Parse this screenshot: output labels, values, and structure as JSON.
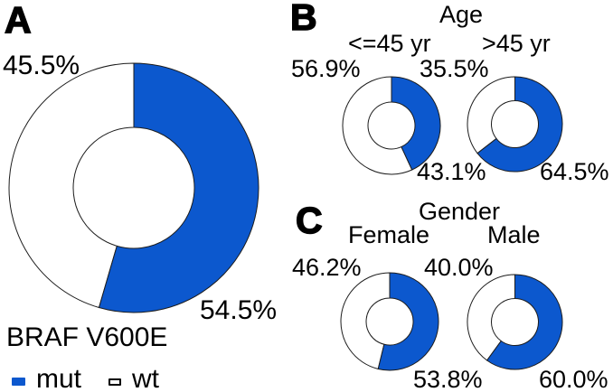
{
  "colors": {
    "mut_blue": "#0c58ce",
    "wt_white": "#ffffff",
    "outline": "#1c1c1c",
    "background": "#ffffff"
  },
  "panel_a": {
    "label": "A",
    "caption": "BRAF V600E",
    "legend": {
      "items": [
        {
          "label": "mut"
        },
        {
          "label": "wt"
        }
      ]
    }
  },
  "panel_b": {
    "label": "B",
    "title": "Age"
  },
  "panel_c": {
    "label": "C",
    "title": "Gender"
  },
  "chart_data": [
    {
      "type": "pie",
      "subtype": "donut",
      "panel": "A",
      "title": "BRAF V600E",
      "legend": [
        "mut",
        "wt"
      ],
      "start_angle_deg": 0,
      "direction": "clockwise",
      "slices": [
        {
          "label": "mut",
          "value": 54.5,
          "display": "54.5%",
          "color": "#0c58ce"
        },
        {
          "label": "wt",
          "value": 45.5,
          "display": "45.5%",
          "color": "#ffffff"
        }
      ]
    },
    {
      "type": "pie",
      "subtype": "donut",
      "panel": "B",
      "group": "Age",
      "title": "<=45 yr",
      "slices": [
        {
          "label": "mut",
          "value": 43.1,
          "display": "43.1%",
          "color": "#0c58ce"
        },
        {
          "label": "wt",
          "value": 56.9,
          "display": "56.9%",
          "color": "#ffffff"
        }
      ]
    },
    {
      "type": "pie",
      "subtype": "donut",
      "panel": "B",
      "group": "Age",
      "title": ">45 yr",
      "slices": [
        {
          "label": "mut",
          "value": 64.5,
          "display": "64.5%",
          "color": "#0c58ce"
        },
        {
          "label": "wt",
          "value": 35.5,
          "display": "35.5%",
          "color": "#ffffff"
        }
      ]
    },
    {
      "type": "pie",
      "subtype": "donut",
      "panel": "C",
      "group": "Gender",
      "title": "Female",
      "slices": [
        {
          "label": "mut",
          "value": 53.8,
          "display": "53.8%",
          "color": "#0c58ce"
        },
        {
          "label": "wt",
          "value": 46.2,
          "display": "46.2%",
          "color": "#ffffff"
        }
      ]
    },
    {
      "type": "pie",
      "subtype": "donut",
      "panel": "C",
      "group": "Gender",
      "title": "Male",
      "slices": [
        {
          "label": "mut",
          "value": 60.0,
          "display": "60.0%",
          "color": "#0c58ce"
        },
        {
          "label": "wt",
          "value": 40.0,
          "display": "40.0%",
          "color": "#ffffff"
        }
      ]
    }
  ]
}
